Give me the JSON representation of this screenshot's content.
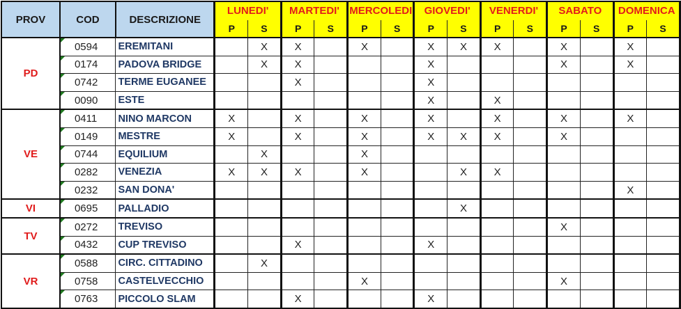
{
  "headers": {
    "prov": "PROV",
    "cod": "COD",
    "descrizione": "DESCRIZIONE",
    "p": "P",
    "s": "S"
  },
  "days": [
    "LUNEDI'",
    "MARTEDI'",
    "MERCOLEDI",
    "GIOVEDI'",
    "VENERDI'",
    "SABATO",
    "DOMENICA"
  ],
  "colors": {
    "header_blue": "#bdd7ee",
    "header_yellow": "#ffff00",
    "day_red": "#e21b1b",
    "prov_red": "#e01b1b",
    "desc_navy": "#1f3864"
  },
  "groups": [
    {
      "prov": "PD",
      "rows": [
        {
          "cod": "0594",
          "desc": "EREMITANI",
          "marks": [
            "",
            "X",
            "X",
            "",
            "X",
            "",
            "X",
            "X",
            "X",
            "",
            "X",
            "",
            "X",
            ""
          ]
        },
        {
          "cod": "0174",
          "desc": "PADOVA BRIDGE",
          "marks": [
            "",
            "X",
            "X",
            "",
            "",
            "",
            "X",
            "",
            "",
            "",
            "X",
            "",
            "X",
            ""
          ]
        },
        {
          "cod": "0742",
          "desc": "TERME EUGANEE",
          "marks": [
            "",
            "",
            "X",
            "",
            "",
            "",
            "X",
            "",
            "",
            "",
            "",
            "",
            "",
            ""
          ]
        },
        {
          "cod": "0090",
          "desc": "ESTE",
          "marks": [
            "",
            "",
            "",
            "",
            "",
            "",
            "X",
            "",
            "X",
            "",
            "",
            "",
            "",
            ""
          ]
        }
      ]
    },
    {
      "prov": "VE",
      "rows": [
        {
          "cod": "0411",
          "desc": "NINO MARCON",
          "marks": [
            "X",
            "",
            "X",
            "",
            "X",
            "",
            "X",
            "",
            "X",
            "",
            "X",
            "",
            "X",
            ""
          ]
        },
        {
          "cod": "0149",
          "desc": "MESTRE",
          "marks": [
            "X",
            "",
            "X",
            "",
            "X",
            "",
            "X",
            "X",
            "X",
            "",
            "X",
            "",
            "",
            ""
          ]
        },
        {
          "cod": "0744",
          "desc": "EQUILIUM",
          "marks": [
            "",
            "X",
            "",
            "",
            "X",
            "",
            "",
            "",
            "",
            "",
            "",
            "",
            "",
            ""
          ]
        },
        {
          "cod": "0282",
          "desc": "VENEZIA",
          "marks": [
            "X",
            "X",
            "X",
            "",
            "X",
            "",
            "",
            "X",
            "X",
            "",
            "",
            "",
            "",
            ""
          ]
        },
        {
          "cod": "0232",
          "desc": "SAN DONA'",
          "marks": [
            "",
            "",
            "",
            "",
            "",
            "",
            "",
            "",
            "",
            "",
            "",
            "",
            "X",
            ""
          ]
        }
      ]
    },
    {
      "prov": "VI",
      "rows": [
        {
          "cod": "0695",
          "desc": "PALLADIO",
          "marks": [
            "",
            "",
            "",
            "",
            "",
            "",
            "",
            "X",
            "",
            "",
            "",
            "",
            "",
            ""
          ]
        }
      ]
    },
    {
      "prov": "TV",
      "rows": [
        {
          "cod": "0272",
          "desc": "TREVISO",
          "marks": [
            "",
            "",
            "",
            "",
            "",
            "",
            "",
            "",
            "",
            "",
            "X",
            "",
            "",
            ""
          ]
        },
        {
          "cod": "0432",
          "desc": "CUP TREVISO",
          "marks": [
            "",
            "",
            "X",
            "",
            "",
            "",
            "X",
            "",
            "",
            "",
            "",
            "",
            "",
            ""
          ]
        }
      ]
    },
    {
      "prov": "VR",
      "rows": [
        {
          "cod": "0588",
          "desc": "CIRC. CITTADINO",
          "marks": [
            "",
            "X",
            "",
            "",
            "",
            "",
            "",
            "",
            "",
            "",
            "",
            "",
            "",
            ""
          ]
        },
        {
          "cod": "0758",
          "desc": "CASTELVECCHIO",
          "marks": [
            "",
            "",
            "",
            "",
            "X",
            "",
            "",
            "",
            "",
            "",
            "X",
            "",
            "",
            ""
          ]
        },
        {
          "cod": "0763",
          "desc": "PICCOLO SLAM",
          "marks": [
            "",
            "",
            "X",
            "",
            "",
            "",
            "X",
            "",
            "",
            "",
            "",
            "",
            "",
            ""
          ]
        }
      ]
    }
  ]
}
